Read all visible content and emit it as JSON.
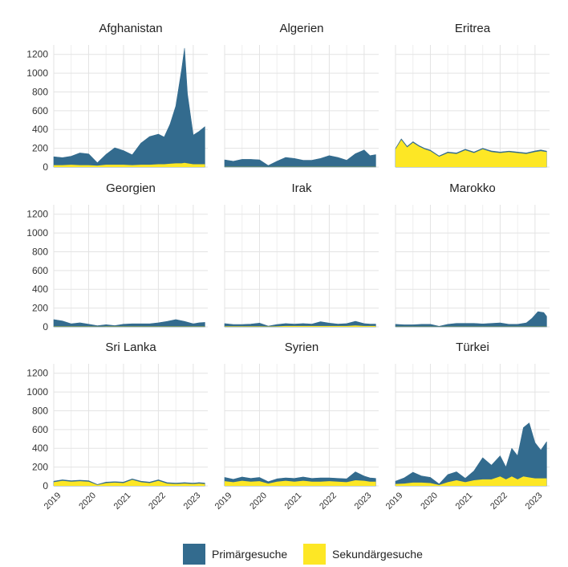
{
  "chart_data": {
    "type": "area",
    "layout": "small-multiples",
    "stacked": true,
    "ylim": [
      0,
      1300
    ],
    "yticks": [
      0,
      200,
      400,
      600,
      800,
      1000,
      1200
    ],
    "xticks": [
      "2019",
      "2020",
      "2021",
      "2022",
      "2023"
    ],
    "x_range": [
      "2019-01",
      "2023-06"
    ],
    "series_names": [
      "Primärgesuche",
      "Sekundärgesuche"
    ],
    "colors": {
      "Primärgesuche": "#336b8e",
      "Sekundärgesuche": "#fde725"
    },
    "panels": [
      {
        "title": "Afghanistan",
        "x": [
          "2019-01",
          "2019-04",
          "2019-07",
          "2019-10",
          "2020-01",
          "2020-04",
          "2020-07",
          "2020-10",
          "2021-01",
          "2021-04",
          "2021-07",
          "2021-10",
          "2022-01",
          "2022-03",
          "2022-05",
          "2022-07",
          "2022-09",
          "2022-10",
          "2022-11",
          "2023-01",
          "2023-03",
          "2023-05"
        ],
        "series": [
          {
            "name": "Primärgesuche",
            "values": [
              90,
              80,
              90,
              130,
              120,
              30,
              110,
              180,
              150,
              110,
              230,
              300,
              320,
              290,
              420,
              610,
              1000,
              1220,
              740,
              310,
              350,
              400
            ]
          },
          {
            "name": "Sekundärgesuche",
            "values": [
              20,
              20,
              25,
              20,
              20,
              15,
              25,
              25,
              25,
              20,
              25,
              25,
              30,
              30,
              35,
              40,
              40,
              45,
              40,
              30,
              30,
              30
            ]
          }
        ]
      },
      {
        "title": "Algerien",
        "x": [
          "2019-01",
          "2019-04",
          "2019-07",
          "2019-10",
          "2020-01",
          "2020-04",
          "2020-07",
          "2020-10",
          "2021-01",
          "2021-04",
          "2021-07",
          "2021-10",
          "2022-01",
          "2022-04",
          "2022-07",
          "2022-10",
          "2023-01",
          "2023-03",
          "2023-05"
        ],
        "series": [
          {
            "name": "Primärgesuche",
            "values": [
              75,
              60,
              80,
              80,
              75,
              15,
              60,
              100,
              90,
              70,
              70,
              90,
              120,
              100,
              70,
              140,
              180,
              120,
              130
            ]
          },
          {
            "name": "Sekundärgesuche",
            "values": [
              2,
              2,
              2,
              2,
              2,
              1,
              2,
              2,
              2,
              2,
              2,
              2,
              2,
              2,
              2,
              2,
              2,
              2,
              2
            ]
          }
        ]
      },
      {
        "title": "Eritrea",
        "x": [
          "2019-01",
          "2019-03",
          "2019-05",
          "2019-07",
          "2019-09",
          "2019-11",
          "2020-01",
          "2020-04",
          "2020-07",
          "2020-10",
          "2021-01",
          "2021-04",
          "2021-07",
          "2021-10",
          "2022-01",
          "2022-04",
          "2022-07",
          "2022-10",
          "2023-01",
          "2023-03",
          "2023-05"
        ],
        "series": [
          {
            "name": "Primärgesuche",
            "values": [
              8,
              10,
              10,
              10,
              10,
              10,
              10,
              8,
              10,
              10,
              10,
              10,
              10,
              12,
              10,
              10,
              10,
              10,
              12,
              12,
              10
            ]
          },
          {
            "name": "Sekundärgesuche",
            "values": [
              190,
              290,
              210,
              260,
              220,
              190,
              170,
              110,
              150,
              140,
              180,
              150,
              190,
              160,
              150,
              160,
              150,
              140,
              160,
              170,
              160
            ]
          }
        ]
      },
      {
        "title": "Georgien",
        "x": [
          "2019-01",
          "2019-04",
          "2019-07",
          "2019-10",
          "2020-01",
          "2020-04",
          "2020-07",
          "2020-10",
          "2021-01",
          "2021-04",
          "2021-07",
          "2021-10",
          "2022-01",
          "2022-04",
          "2022-07",
          "2022-10",
          "2023-01",
          "2023-03",
          "2023-05"
        ],
        "series": [
          {
            "name": "Primärgesuche",
            "values": [
              75,
              60,
              30,
              40,
              25,
              10,
              20,
              10,
              25,
              30,
              30,
              30,
              40,
              55,
              75,
              55,
              30,
              40,
              45
            ]
          },
          {
            "name": "Sekundärgesuche",
            "values": [
              3,
              3,
              3,
              3,
              3,
              2,
              3,
              3,
              3,
              3,
              3,
              3,
              3,
              3,
              3,
              3,
              3,
              3,
              3
            ]
          }
        ]
      },
      {
        "title": "Irak",
        "x": [
          "2019-01",
          "2019-04",
          "2019-07",
          "2019-10",
          "2020-01",
          "2020-04",
          "2020-07",
          "2020-10",
          "2021-01",
          "2021-04",
          "2021-07",
          "2021-10",
          "2022-01",
          "2022-04",
          "2022-07",
          "2022-10",
          "2023-01",
          "2023-03",
          "2023-05"
        ],
        "series": [
          {
            "name": "Primärgesuche",
            "values": [
              30,
              20,
              20,
              25,
              35,
              5,
              20,
              25,
              20,
              25,
              20,
              45,
              30,
              20,
              25,
              45,
              25,
              20,
              20
            ]
          },
          {
            "name": "Sekundärgesuche",
            "values": [
              5,
              5,
              5,
              5,
              5,
              3,
              5,
              10,
              10,
              10,
              10,
              10,
              10,
              10,
              10,
              15,
              10,
              10,
              10
            ]
          }
        ]
      },
      {
        "title": "Marokko",
        "x": [
          "2019-01",
          "2019-04",
          "2019-07",
          "2019-10",
          "2020-01",
          "2020-04",
          "2020-07",
          "2020-10",
          "2021-01",
          "2021-04",
          "2021-07",
          "2021-10",
          "2022-01",
          "2022-04",
          "2022-07",
          "2022-10",
          "2022-12",
          "2023-02",
          "2023-04",
          "2023-05"
        ],
        "series": [
          {
            "name": "Primärgesuche",
            "values": [
              25,
              20,
              20,
              25,
              25,
              5,
              25,
              35,
              35,
              35,
              30,
              35,
              40,
              25,
              25,
              40,
              90,
              160,
              150,
              110
            ]
          },
          {
            "name": "Sekundärgesuche",
            "values": [
              2,
              2,
              2,
              2,
              2,
              1,
              2,
              2,
              2,
              2,
              2,
              2,
              2,
              2,
              2,
              2,
              2,
              2,
              2,
              2
            ]
          }
        ]
      },
      {
        "title": "Sri Lanka",
        "x": [
          "2019-01",
          "2019-04",
          "2019-07",
          "2019-10",
          "2020-01",
          "2020-04",
          "2020-07",
          "2020-10",
          "2021-01",
          "2021-04",
          "2021-07",
          "2021-10",
          "2022-01",
          "2022-04",
          "2022-07",
          "2022-10",
          "2023-01",
          "2023-03",
          "2023-05"
        ],
        "series": [
          {
            "name": "Primärgesuche",
            "values": [
              10,
              10,
              10,
              10,
              10,
              5,
              10,
              10,
              10,
              10,
              10,
              10,
              10,
              10,
              10,
              10,
              10,
              10,
              10
            ]
          },
          {
            "name": "Sekundärgesuche",
            "values": [
              40,
              55,
              45,
              50,
              45,
              10,
              30,
              35,
              30,
              65,
              40,
              30,
              55,
              25,
              20,
              25,
              20,
              25,
              20
            ]
          }
        ]
      },
      {
        "title": "Syrien",
        "x": [
          "2019-01",
          "2019-04",
          "2019-07",
          "2019-10",
          "2020-01",
          "2020-04",
          "2020-07",
          "2020-10",
          "2021-01",
          "2021-04",
          "2021-07",
          "2021-10",
          "2022-01",
          "2022-04",
          "2022-07",
          "2022-10",
          "2023-01",
          "2023-03",
          "2023-05"
        ],
        "series": [
          {
            "name": "Primärgesuche",
            "values": [
              40,
              30,
              40,
              35,
              40,
              20,
              30,
              30,
              35,
              40,
              35,
              40,
              35,
              35,
              35,
              90,
              50,
              40,
              35
            ]
          },
          {
            "name": "Sekundärgesuche",
            "values": [
              50,
              40,
              55,
              45,
              50,
              25,
              45,
              55,
              45,
              55,
              45,
              45,
              50,
              45,
              40,
              60,
              55,
              45,
              45
            ]
          }
        ]
      },
      {
        "title": "Türkei",
        "x": [
          "2019-01",
          "2019-04",
          "2019-07",
          "2019-10",
          "2020-01",
          "2020-04",
          "2020-07",
          "2020-10",
          "2021-01",
          "2021-04",
          "2021-07",
          "2021-10",
          "2022-01",
          "2022-03",
          "2022-05",
          "2022-07",
          "2022-09",
          "2022-11",
          "2023-01",
          "2023-03",
          "2023-05"
        ],
        "series": [
          {
            "name": "Primärgesuche",
            "values": [
              30,
              60,
              110,
              70,
              60,
              10,
              80,
              90,
              40,
              100,
              230,
              150,
              220,
              130,
              300,
              250,
              520,
              580,
              380,
              300,
              390
            ]
          },
          {
            "name": "Sekundärgesuche",
            "values": [
              20,
              25,
              35,
              35,
              30,
              10,
              40,
              60,
              40,
              60,
              70,
              70,
              100,
              70,
              100,
              70,
              100,
              90,
              80,
              80,
              80
            ]
          }
        ]
      }
    ]
  },
  "legend": {
    "items": [
      {
        "label": "Primärgesuche",
        "color": "#336b8e"
      },
      {
        "label": "Sekundärgesuche",
        "color": "#fde725"
      }
    ]
  }
}
